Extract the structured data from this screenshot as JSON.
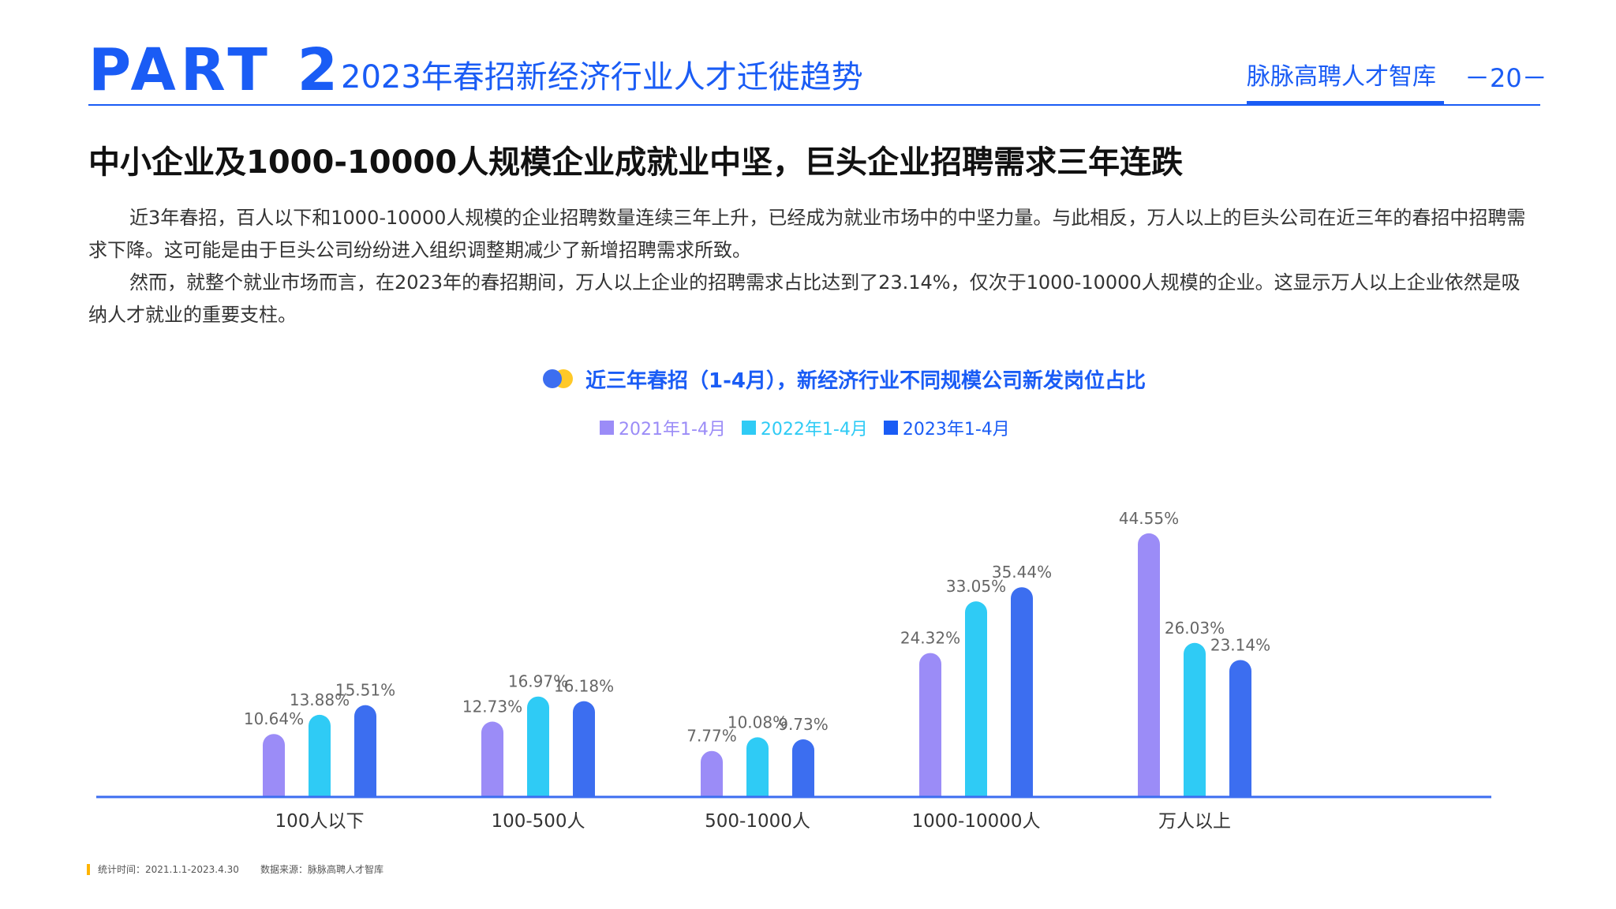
{
  "header": {
    "part_label": "PART 2",
    "part_title": "2023年春招新经济行业人才迁徙趋势",
    "brand": "脉脉高聘人才智库",
    "page_number": "－20－",
    "accent_color": "#1a5cf5"
  },
  "headline": "中小企业及1000-10000人规模企业成就业中坚，巨头企业招聘需求三年连跌",
  "paragraphs": [
    "近3年春招，百人以下和1000-10000人规模的企业招聘数量连续三年上升，已经成为就业市场中的中坚力量。与此相反，万人以上的巨头公司在近三年的春招中招聘需求下降。这可能是由于巨头公司纷纷进入组织调整期减少了新增招聘需求所致。",
    "然而，就整个就业市场而言，在2023年的春招期间，万人以上企业的招聘需求占比达到了23.14%，仅次于1000-10000人规模的企业。这显示万人以上企业依然是吸纳人才就业的重要支柱。"
  ],
  "chart_data": {
    "type": "bar",
    "title": "近三年春招（1-4月），新经济行业不同规模公司新发岗位占比",
    "categories": [
      "100人以下",
      "100-500人",
      "500-1000人",
      "1000-10000人",
      "万人以上"
    ],
    "series": [
      {
        "name": "2021年1-4月",
        "color": "#9b8cf7",
        "values": [
          10.64,
          12.73,
          7.77,
          24.32,
          44.55
        ],
        "labels": [
          "10.64%",
          "12.73%",
          "7.77%",
          "24.32%",
          "44.55%"
        ]
      },
      {
        "name": "2022年1-4月",
        "color": "#2fcbf5",
        "values": [
          13.88,
          16.97,
          10.08,
          33.05,
          26.03
        ],
        "labels": [
          "13.88%",
          "16.97%",
          "10.08%",
          "33.05%",
          "26.03%"
        ]
      },
      {
        "name": "2023年1-4月",
        "color": "#3c6ef0",
        "values": [
          15.51,
          16.18,
          9.73,
          35.44,
          23.14
        ],
        "labels": [
          "15.51%",
          "16.18%",
          "9.73%",
          "35.44%",
          "23.14%"
        ]
      }
    ],
    "ylim": [
      0,
      50
    ],
    "xlabel": "",
    "ylabel": "",
    "legend_position": "top-center",
    "axis_color": "#3c6ef0"
  },
  "footer": {
    "stat_period": "统计时间：2021.1.1-2023.4.30",
    "source": "数据来源：脉脉高聘人才智库",
    "marker_color": "#ffb400"
  }
}
